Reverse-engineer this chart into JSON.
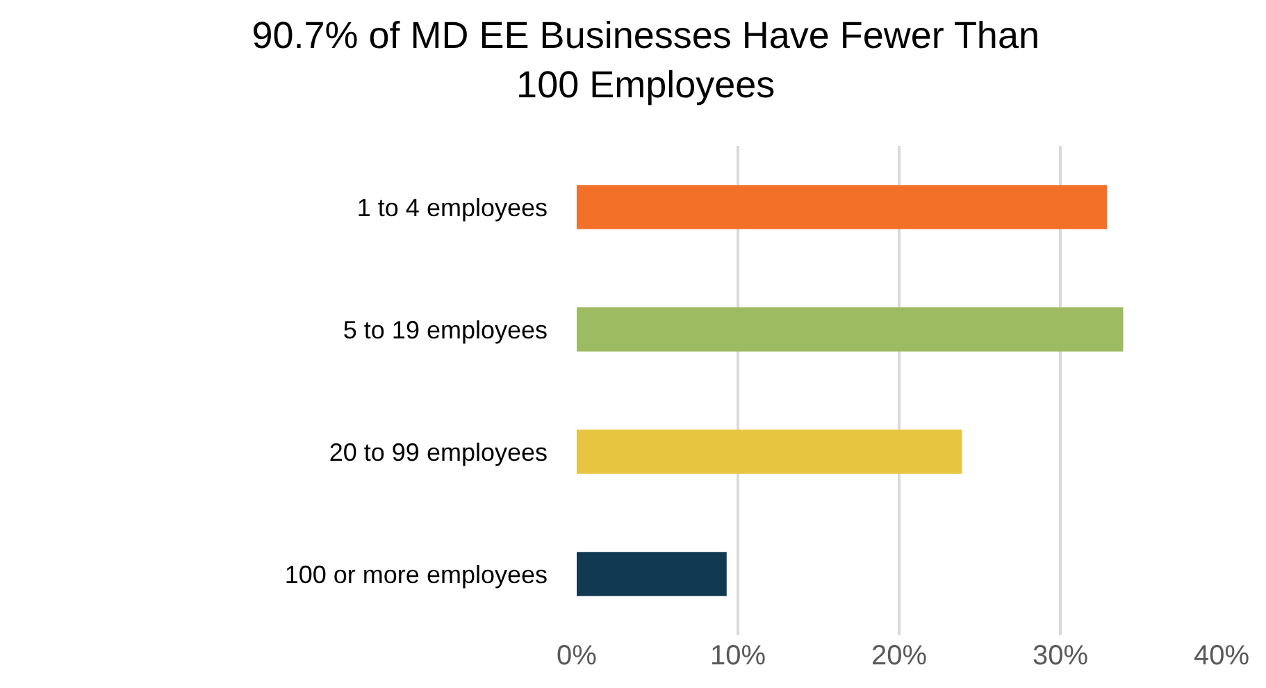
{
  "chart_data": {
    "type": "bar",
    "orientation": "horizontal",
    "title": "90.7% of MD EE Businesses Have Fewer Than\n100 Employees",
    "categories": [
      "1 to 4 employees",
      "5 to 19 employees",
      "20 to 99 employees",
      "100 or more employees"
    ],
    "values": [
      32.9,
      33.9,
      23.9,
      9.3
    ],
    "colors": [
      "#f37029",
      "#9dbb61",
      "#e8c541",
      "#113a52"
    ],
    "xlim": [
      0,
      40
    ],
    "xticks": [
      {
        "value": 0,
        "label": "0%"
      },
      {
        "value": 10,
        "label": "10%"
      },
      {
        "value": 20,
        "label": "20%"
      },
      {
        "value": 30,
        "label": "30%"
      },
      {
        "value": 40,
        "label": "40%"
      }
    ],
    "grid": "x"
  }
}
